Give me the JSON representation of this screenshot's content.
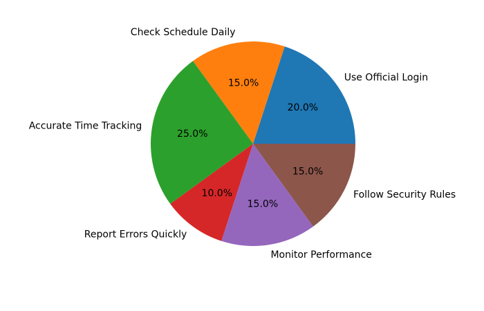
{
  "chart_data": {
    "type": "pie",
    "title": "",
    "start_angle_deg": 0,
    "direction": "counterclockwise",
    "slices": [
      {
        "label": "Use Official Login",
        "value": 20.0,
        "pct_text": "20.0%",
        "color": "#1f77b4"
      },
      {
        "label": "Check Schedule Daily",
        "value": 15.0,
        "pct_text": "15.0%",
        "color": "#ff7f0e"
      },
      {
        "label": "Accurate Time Tracking",
        "value": 25.0,
        "pct_text": "25.0%",
        "color": "#2ca02c"
      },
      {
        "label": "Report Errors Quickly",
        "value": 10.0,
        "pct_text": "10.0%",
        "color": "#d62728"
      },
      {
        "label": "Monitor Performance",
        "value": 15.0,
        "pct_text": "15.0%",
        "color": "#9467bd"
      },
      {
        "label": "Follow Security Rules",
        "value": 15.0,
        "pct_text": "15.0%",
        "color": "#8c564b"
      }
    ]
  }
}
